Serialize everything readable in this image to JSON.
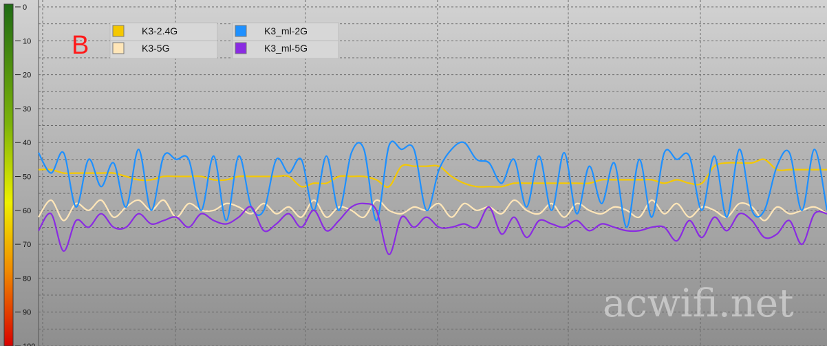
{
  "panel_label": "B",
  "watermark": "acwifi.net",
  "chart_data": {
    "type": "line",
    "ylim": [
      0,
      100
    ],
    "y_inverted": true,
    "y_ticks": [
      "0",
      "10",
      "20",
      "30",
      "40",
      "50",
      "60",
      "70",
      "80",
      "90",
      "100"
    ],
    "grid": true,
    "legend_position": "top-left",
    "series": [
      {
        "name": "K3-2.4G",
        "color": "#f5c800",
        "values": [
          48,
          48,
          49,
          49,
          49,
          49,
          49,
          50,
          51,
          51,
          50,
          50,
          50,
          50,
          51,
          51,
          50,
          50,
          50,
          50,
          50,
          53,
          52,
          52,
          50,
          50,
          50,
          51,
          53,
          47,
          47,
          47,
          47,
          50,
          52,
          53,
          53,
          53,
          52,
          52,
          52,
          52,
          52,
          52,
          52,
          51,
          51,
          51,
          51,
          51,
          52,
          51,
          52,
          52,
          47,
          46,
          46,
          46,
          45,
          48,
          48,
          48,
          48,
          48
        ]
      },
      {
        "name": "K3-5G",
        "color": "#ffe6b8",
        "values": [
          62,
          57,
          63,
          58,
          60,
          57,
          62,
          59,
          57,
          60,
          57,
          62,
          58,
          60,
          60,
          58,
          59,
          61,
          58,
          61,
          59,
          62,
          57,
          62,
          59,
          60,
          62,
          57,
          60,
          61,
          59,
          60,
          58,
          62,
          58,
          60,
          59,
          61,
          57,
          60,
          61,
          58,
          62,
          58,
          60,
          61,
          59,
          60,
          62,
          57,
          61,
          58,
          62,
          59,
          60,
          62,
          58,
          59,
          63,
          59,
          61,
          60,
          59,
          61
        ]
      },
      {
        "name": "K3_ml-2G",
        "color": "#1e90ff",
        "values": [
          43,
          49,
          43,
          59,
          45,
          53,
          46,
          59,
          42,
          60,
          44,
          45,
          45,
          60,
          44,
          63,
          44,
          59,
          60,
          45,
          49,
          45,
          60,
          44,
          60,
          43,
          42,
          63,
          41,
          42,
          42,
          60,
          48,
          42,
          40,
          45,
          46,
          52,
          45,
          59,
          44,
          60,
          43,
          61,
          47,
          58,
          46,
          65,
          45,
          62,
          43,
          45,
          44,
          60,
          44,
          62,
          42,
          60,
          60,
          47,
          43,
          60,
          42,
          60
        ]
      },
      {
        "name": "K3_ml-5G",
        "color": "#8a2be2",
        "values": [
          66,
          61,
          72,
          63,
          65,
          61,
          65,
          65,
          61,
          64,
          63,
          62,
          65,
          61,
          63,
          64,
          62,
          59,
          66,
          64,
          61,
          65,
          60,
          66,
          63,
          59,
          58,
          60,
          73,
          62,
          65,
          62,
          65,
          65,
          64,
          65,
          59,
          67,
          62,
          68,
          63,
          64,
          65,
          63,
          66,
          64,
          65,
          66,
          66,
          65,
          65,
          69,
          63,
          68,
          62,
          66,
          61,
          63,
          68,
          67,
          63,
          70,
          61,
          61
        ]
      }
    ]
  }
}
